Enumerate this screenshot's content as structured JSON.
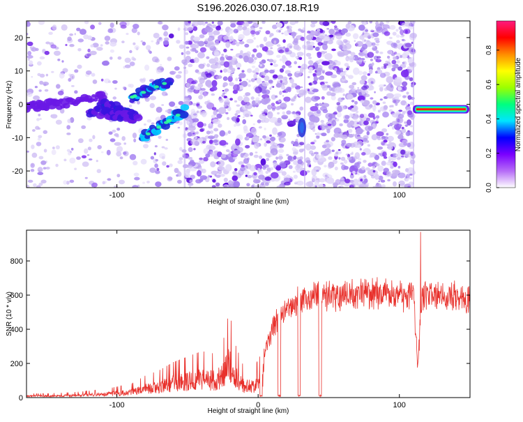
{
  "title": "S196.2026.030.07.18.R19",
  "colors": {
    "background": "#ffffff",
    "axis": "#000000",
    "snr_line": "#e8302b",
    "spectro_low": "#c9b6f2",
    "spectro_mid": "#6a18e6",
    "spectro_high": "#1a2ad6"
  },
  "chart_data": [
    {
      "type": "heatmap",
      "name": "spectrogram",
      "xlabel": "Height of straight line (km)",
      "ylabel": "Frequency (Hz)",
      "xlim": [
        -164,
        150
      ],
      "ylim": [
        -25,
        25
      ],
      "xticks": [
        -100,
        0,
        100
      ],
      "yticks": [
        -20,
        -10,
        0,
        10,
        20
      ],
      "noise_segments": [
        {
          "x": [
            -164,
            -52
          ],
          "density": "sparse"
        },
        {
          "x": [
            -52,
            33
          ],
          "density": "dense"
        },
        {
          "x": [
            35,
            110
          ],
          "density": "dense"
        }
      ],
      "ridges": [
        {
          "x": [
            -164,
            -110
          ],
          "y": [
            -1,
            2
          ],
          "intensity": 0.15
        },
        {
          "x": [
            -112,
            -88
          ],
          "y": [
            1,
            -4
          ],
          "intensity": 0.25
        },
        {
          "x": [
            -90,
            -62
          ],
          "y": [
            2,
            7
          ],
          "intensity": 0.35
        },
        {
          "x": [
            -82,
            -52
          ],
          "y": [
            -10,
            -2
          ],
          "intensity": 0.4
        },
        {
          "x": [
            -120,
            -85
          ],
          "y": [
            -2,
            -4
          ],
          "intensity": 0.2
        }
      ],
      "blobs": [
        {
          "x": 31,
          "y": -7,
          "intensity": 0.2
        }
      ],
      "tone": {
        "x": [
          111,
          148
        ],
        "y": -1.5,
        "intensity": 1.0
      },
      "colorbar": {
        "label": "Normalized spectral amplitude",
        "range": [
          0,
          0.97
        ],
        "ticks": [
          "0.0",
          "0.2",
          "0.4",
          "0.6",
          "0.8"
        ],
        "tick_values": [
          0.0,
          0.2,
          0.4,
          0.6,
          0.8
        ],
        "stops": [
          "#ffffff",
          "#b66cf7",
          "#7a00ff",
          "#0000ff",
          "#00e5ff",
          "#00ff7f",
          "#9cff00",
          "#ffff00",
          "#ff8c00",
          "#ff0000",
          "#ff1a7f"
        ]
      }
    },
    {
      "type": "line",
      "name": "snr",
      "xlabel": "Height of straight line (km)",
      "ylabel": "SNR (10 * v/v)",
      "xlim": [
        -164,
        150
      ],
      "ylim": [
        0,
        980
      ],
      "xticks": [
        -100,
        0,
        100
      ],
      "yticks": [
        0,
        200,
        400,
        600,
        800
      ],
      "envelope": [
        [
          -164,
          15
        ],
        [
          -150,
          15
        ],
        [
          -130,
          20
        ],
        [
          -110,
          30
        ],
        [
          -90,
          50
        ],
        [
          -80,
          80
        ],
        [
          -70,
          100
        ],
        [
          -60,
          130
        ],
        [
          -50,
          150
        ],
        [
          -40,
          170
        ],
        [
          -30,
          160
        ],
        [
          -25,
          200
        ],
        [
          -20,
          330
        ],
        [
          -18,
          220
        ],
        [
          -10,
          110
        ],
        [
          -2,
          100
        ],
        [
          0,
          150
        ],
        [
          2,
          20
        ],
        [
          4,
          300
        ],
        [
          8,
          400
        ],
        [
          12,
          500
        ],
        [
          18,
          560
        ],
        [
          25,
          600
        ],
        [
          30,
          640
        ],
        [
          35,
          640
        ],
        [
          40,
          660
        ],
        [
          50,
          670
        ],
        [
          60,
          680
        ],
        [
          70,
          680
        ],
        [
          80,
          680
        ],
        [
          90,
          690
        ],
        [
          100,
          680
        ],
        [
          108,
          660
        ],
        [
          110,
          680
        ],
        [
          113,
          200
        ],
        [
          116,
          680
        ],
        [
          120,
          680
        ],
        [
          130,
          670
        ],
        [
          140,
          660
        ],
        [
          150,
          640
        ]
      ],
      "dropouts": [
        [
          1,
          3
        ],
        [
          14,
          16
        ],
        [
          28,
          30
        ],
        [
          43,
          45
        ]
      ],
      "peaks": [
        [
          -19,
          450
        ],
        [
          1,
          240
        ],
        [
          115,
          970
        ],
        [
          114,
          340
        ]
      ]
    }
  ]
}
